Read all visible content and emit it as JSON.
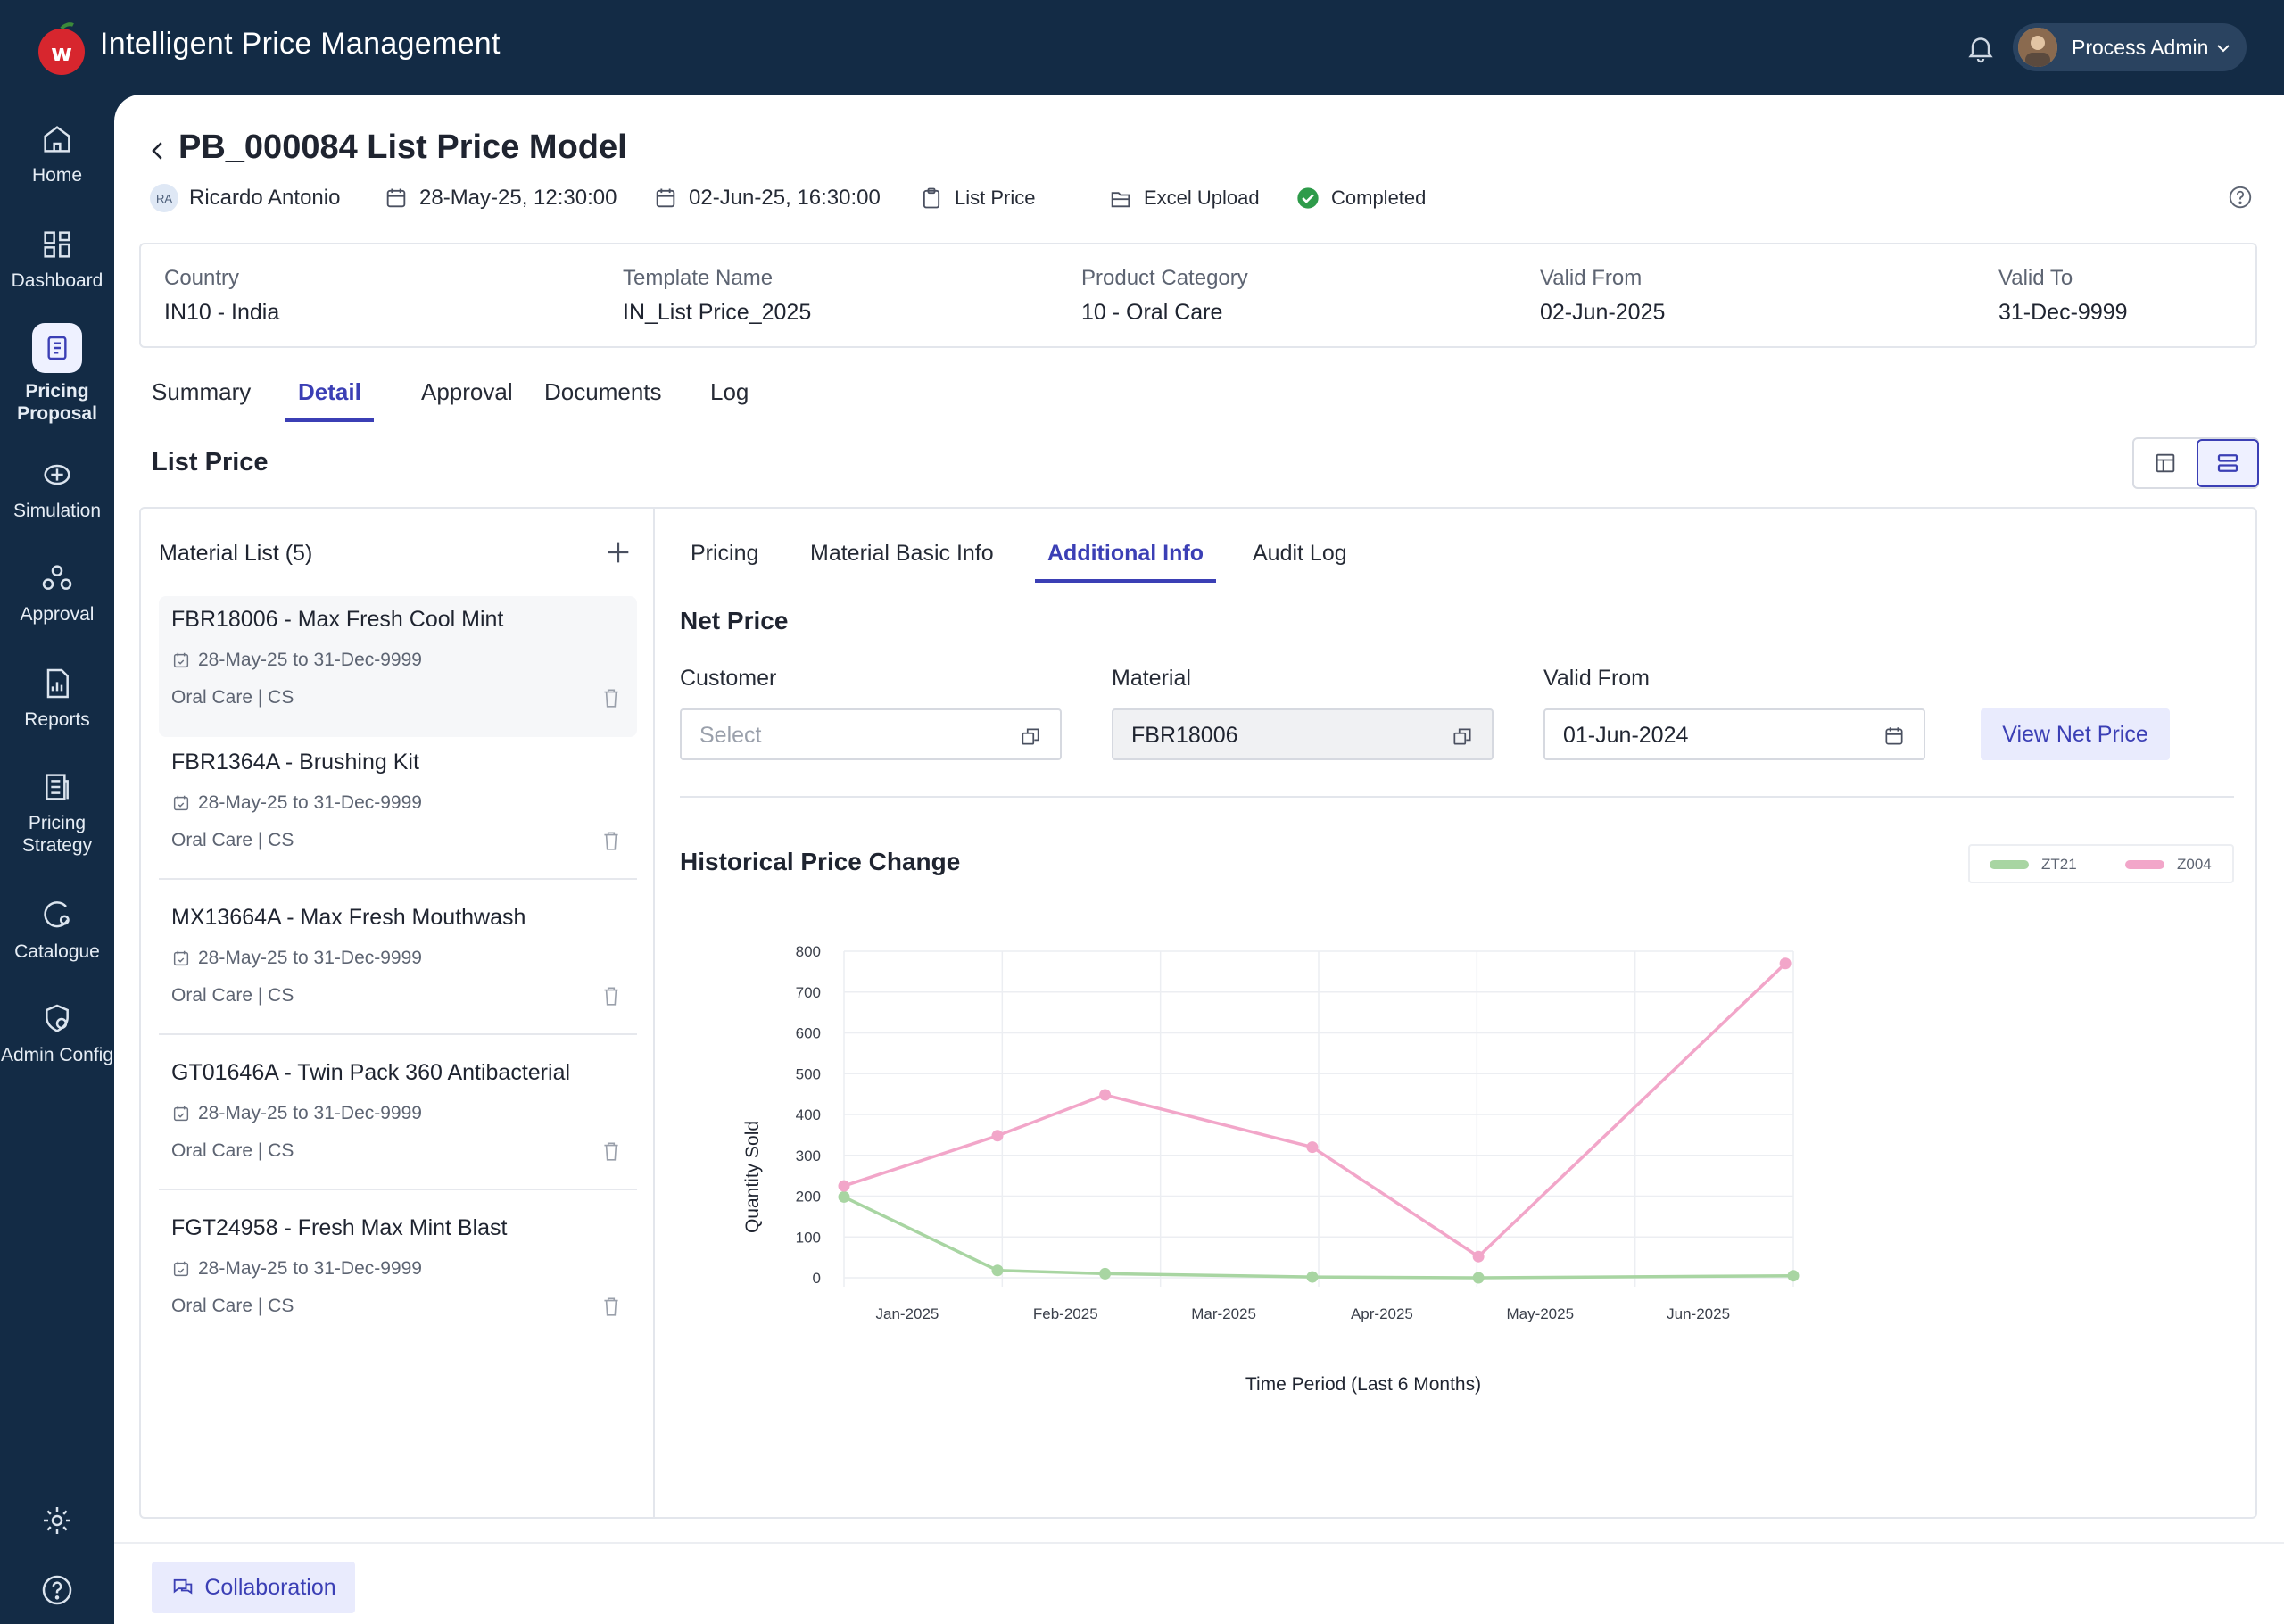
{
  "app": {
    "title": "Intelligent Price Management"
  },
  "user": {
    "name": "Process Admin"
  },
  "sidebar": {
    "items": [
      {
        "label": "Home",
        "icon": "home-icon"
      },
      {
        "label": "Dashboard",
        "icon": "dashboard-icon"
      },
      {
        "label": "Pricing Proposal",
        "icon": "pricing-proposal-icon",
        "active": true
      },
      {
        "label": "Simulation",
        "icon": "simulation-icon"
      },
      {
        "label": "Approval",
        "icon": "approval-icon"
      },
      {
        "label": "Reports",
        "icon": "reports-icon"
      },
      {
        "label": "Pricing Strategy",
        "icon": "pricing-strategy-icon"
      },
      {
        "label": "Catalogue",
        "icon": "catalogue-icon"
      },
      {
        "label": "Admin Config",
        "icon": "admin-config-icon"
      }
    ]
  },
  "page": {
    "title": "PB_000084 List Price Model",
    "meta": {
      "owner_initials": "RA",
      "owner": "Ricardo Antonio",
      "created": "28-May-25, 12:30:00",
      "updated": "02-Jun-25, 16:30:00",
      "type": "List Price",
      "source": "Excel Upload",
      "status": "Completed"
    },
    "info": [
      {
        "label": "Country",
        "value": "IN10 - India"
      },
      {
        "label": "Template Name",
        "value": "IN_List Price_2025"
      },
      {
        "label": "Product Category",
        "value": "10 - Oral Care"
      },
      {
        "label": "Valid From",
        "value": "02-Jun-2025"
      },
      {
        "label": "Valid To",
        "value": "31-Dec-9999"
      }
    ],
    "tabs": [
      "Summary",
      "Detail",
      "Approval",
      "Documents",
      "Log"
    ],
    "active_tab": "Detail",
    "section_title": "List Price"
  },
  "material_list": {
    "title": "Material List (5)",
    "items": [
      {
        "name": "FBR18006 - Max Fresh Cool Mint",
        "dates": "28-May-25 to 31-Dec-9999",
        "category": "Oral Care | CS"
      },
      {
        "name": "FBR1364A - Brushing Kit",
        "dates": "28-May-25 to 31-Dec-9999",
        "category": "Oral Care | CS"
      },
      {
        "name": "MX13664A - Max Fresh Mouthwash",
        "dates": "28-May-25 to 31-Dec-9999",
        "category": "Oral Care | CS"
      },
      {
        "name": "GT01646A - Twin Pack 360 Antibacterial",
        "dates": "28-May-25 to 31-Dec-9999",
        "category": "Oral Care | CS"
      },
      {
        "name": "FGT24958 - Fresh Max Mint Blast",
        "dates": "28-May-25 to 31-Dec-9999",
        "category": "Oral Care | CS"
      }
    ]
  },
  "detail": {
    "subtabs": [
      "Pricing",
      "Material Basic Info",
      "Additional Info",
      "Audit Log"
    ],
    "active_subtab": "Additional Info",
    "net_price": {
      "title": "Net Price",
      "customer_label": "Customer",
      "customer_placeholder": "Select",
      "material_label": "Material",
      "material_value": "FBR18006",
      "valid_from_label": "Valid From",
      "valid_from_value": "01-Jun-2024",
      "button": "View Net Price"
    },
    "history_title": "Historical Price Change"
  },
  "chart_data": {
    "type": "line",
    "title": "Historical Price Change",
    "xlabel": "Time Period (Last 6 Months)",
    "ylabel": "Quantity Sold",
    "categories": [
      "Jan-2025",
      "Feb-2025",
      "Mar-2025",
      "Apr-2025",
      "May-2025",
      "Jun-2025"
    ],
    "yticks": [
      0,
      100,
      200,
      300,
      400,
      500,
      600,
      700,
      800
    ],
    "ylim": [
      0,
      800
    ],
    "grid": true,
    "legend": "top-right",
    "series": [
      {
        "name": "ZT21",
        "color": "#a8d5a2",
        "x": [
          0,
          0.97,
          1.65,
          2.96,
          4.01,
          6.0
        ],
        "values": [
          198,
          18,
          10,
          2,
          0,
          5
        ]
      },
      {
        "name": "Z004",
        "color": "#f2a6c9",
        "x": [
          0,
          0.97,
          1.65,
          2.96,
          4.01,
          5.95
        ],
        "values": [
          225,
          348,
          448,
          320,
          52,
          770
        ]
      }
    ]
  },
  "footer": {
    "collaboration": "Collaboration"
  }
}
